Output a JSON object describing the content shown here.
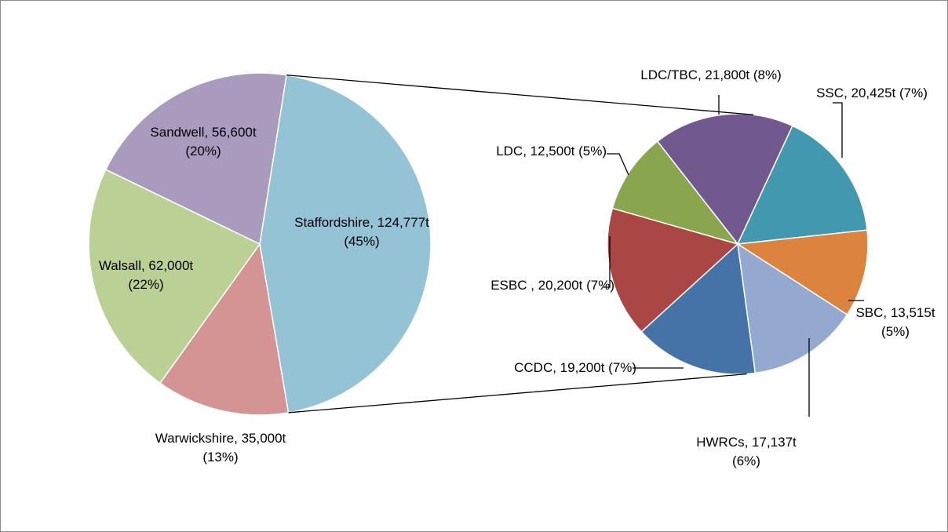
{
  "chart_data": [
    {
      "type": "pie",
      "values": [
        124777,
        35000,
        62000,
        56600
      ],
      "value_labels": [
        "Staffordshire, 124,777t (45%)",
        "Warwickshire, 35,000t (13%)",
        "Walsall, 62,000t (22%)",
        "Sandwell, 56,600t (20%)"
      ],
      "colors": [
        "#93c3d5",
        "#d49494",
        "#bbd094",
        "#a99bbd"
      ]
    },
    {
      "type": "pie",
      "values": [
        21800,
        20425,
        13515,
        17137,
        19200,
        20200,
        12500
      ],
      "value_labels": [
        "LDC/TBC, 21,800t (8%)",
        "SSC, 20,425t (7%)",
        "SBC, 13,515t (5%)",
        "HWRCs, 17,137t (6%)",
        "CCDC, 19,200t (7%)",
        "ESBC , 20,200t (7%)",
        "LDC, 12,500t (5%)"
      ],
      "colors": [
        "#71588f",
        "#4198af",
        "#db843d",
        "#93a9cf",
        "#4572a7",
        "#aa4643",
        "#89a54e"
      ]
    }
  ]
}
